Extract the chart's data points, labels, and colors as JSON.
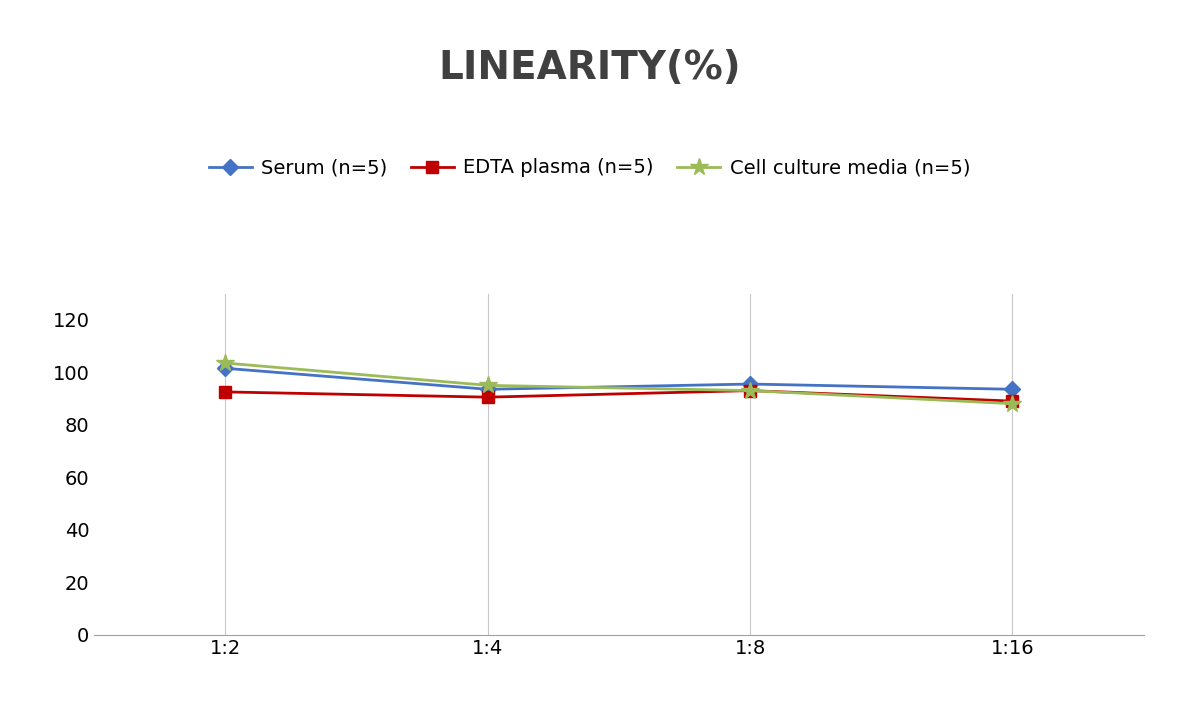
{
  "title": "LINEARITY(%)",
  "title_fontsize": 28,
  "title_fontweight": "bold",
  "title_color": "#404040",
  "x_labels": [
    "1:2",
    "1:4",
    "1:8",
    "1:16"
  ],
  "x_positions": [
    0,
    1,
    2,
    3
  ],
  "series": [
    {
      "label": "Serum (n=5)",
      "color": "#4472C4",
      "marker": "D",
      "markersize": 8,
      "values": [
        101.5,
        93.5,
        95.5,
        93.5
      ]
    },
    {
      "label": "EDTA plasma (n=5)",
      "color": "#C00000",
      "marker": "s",
      "markersize": 8,
      "values": [
        92.5,
        90.5,
        93.0,
        89.0
      ]
    },
    {
      "label": "Cell culture media (n=5)",
      "color": "#9BBB59",
      "marker": "*",
      "markersize": 13,
      "values": [
        103.5,
        95.0,
        93.0,
        88.0
      ]
    }
  ],
  "ylim": [
    0,
    130
  ],
  "yticks": [
    0,
    20,
    40,
    60,
    80,
    100,
    120
  ],
  "background_color": "#FFFFFF",
  "grid_color": "#C8C8C8",
  "tick_fontsize": 14,
  "legend_fontsize": 14
}
